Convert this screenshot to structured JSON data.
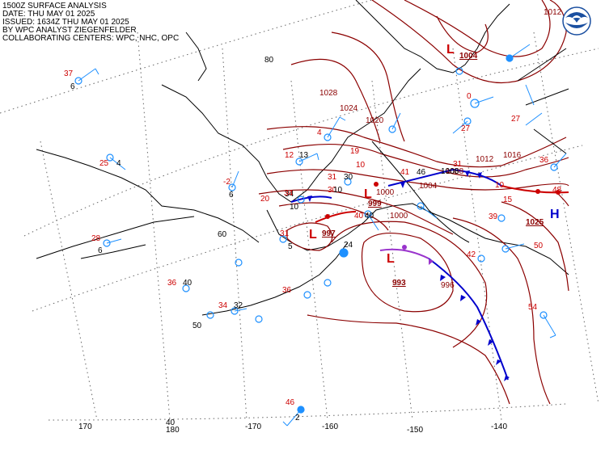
{
  "header": {
    "line1": "1500Z SURFACE ANALYSIS",
    "line2": "DATE: THU MAY 01 2025",
    "line3": "ISSUED: 1634Z THU MAY 01 2025",
    "line4": "BY WPC ANALYST ZIEGENFELDER",
    "line5": "COLLABORATING CENTERS: WPC, NHC, OPC"
  },
  "logo": {
    "icon": "noaa-logo-icon",
    "color": "#1a4fa0"
  },
  "colors": {
    "isobar": "#8b0000",
    "cold_front": "#0000cc",
    "warm_front": "#cc0000",
    "occluded_front": "#9933cc",
    "trough": "#000000",
    "station": "#1e90ff",
    "wind_barb": "#1e90ff",
    "low": "#cc0000",
    "high": "#0000cc"
  },
  "grid": {
    "latitudes": [
      "80",
      "60",
      "50"
    ],
    "longitudes": [
      "170",
      "180",
      "-170",
      "-160",
      "-150",
      "-140"
    ],
    "lat_40": "40"
  },
  "pressure_centers": [
    {
      "type": "L",
      "value": "1004"
    },
    {
      "type": "L",
      "value": "999"
    },
    {
      "type": "L",
      "value": "997"
    },
    {
      "type": "L",
      "value": "993"
    },
    {
      "type": "H",
      "value": "1025"
    }
  ],
  "isobar_labels": [
    "1028",
    "1024",
    "1020",
    "1016",
    "1012",
    "1008",
    "1004",
    "1000",
    "996",
    "1012",
    "1000"
  ],
  "stations": [
    {
      "t": "37",
      "d": "6"
    },
    {
      "t": "25",
      "d": "4"
    },
    {
      "t": "28",
      "d": "6"
    },
    {
      "t": "-2",
      "d": "6"
    },
    {
      "t": "12",
      "d": "13"
    },
    {
      "t": "31",
      "d": "30"
    },
    {
      "t": "20",
      "d": "34"
    },
    {
      "t": "30",
      "d": "10"
    },
    {
      "t": "31",
      "d": "5"
    },
    {
      "t": "34",
      "d": "10"
    },
    {
      "t": "40",
      "d": "40"
    },
    {
      "t": "41",
      "d": "46"
    },
    {
      "t": "36",
      "d": "40"
    },
    {
      "t": "34",
      "d": "32"
    },
    {
      "t": "36",
      "d": "24"
    },
    {
      "t": "46",
      "d": "2"
    },
    {
      "t": "31",
      "d": "1008"
    },
    {
      "t": "27",
      "d": "27"
    },
    {
      "t": "36",
      "d": "48"
    },
    {
      "t": "39",
      "d": "50"
    },
    {
      "t": "54",
      "d": "42"
    },
    {
      "t": "19",
      "d": "10"
    },
    {
      "t": "4",
      "d": "0"
    },
    {
      "t": "10",
      "d": "15"
    }
  ]
}
